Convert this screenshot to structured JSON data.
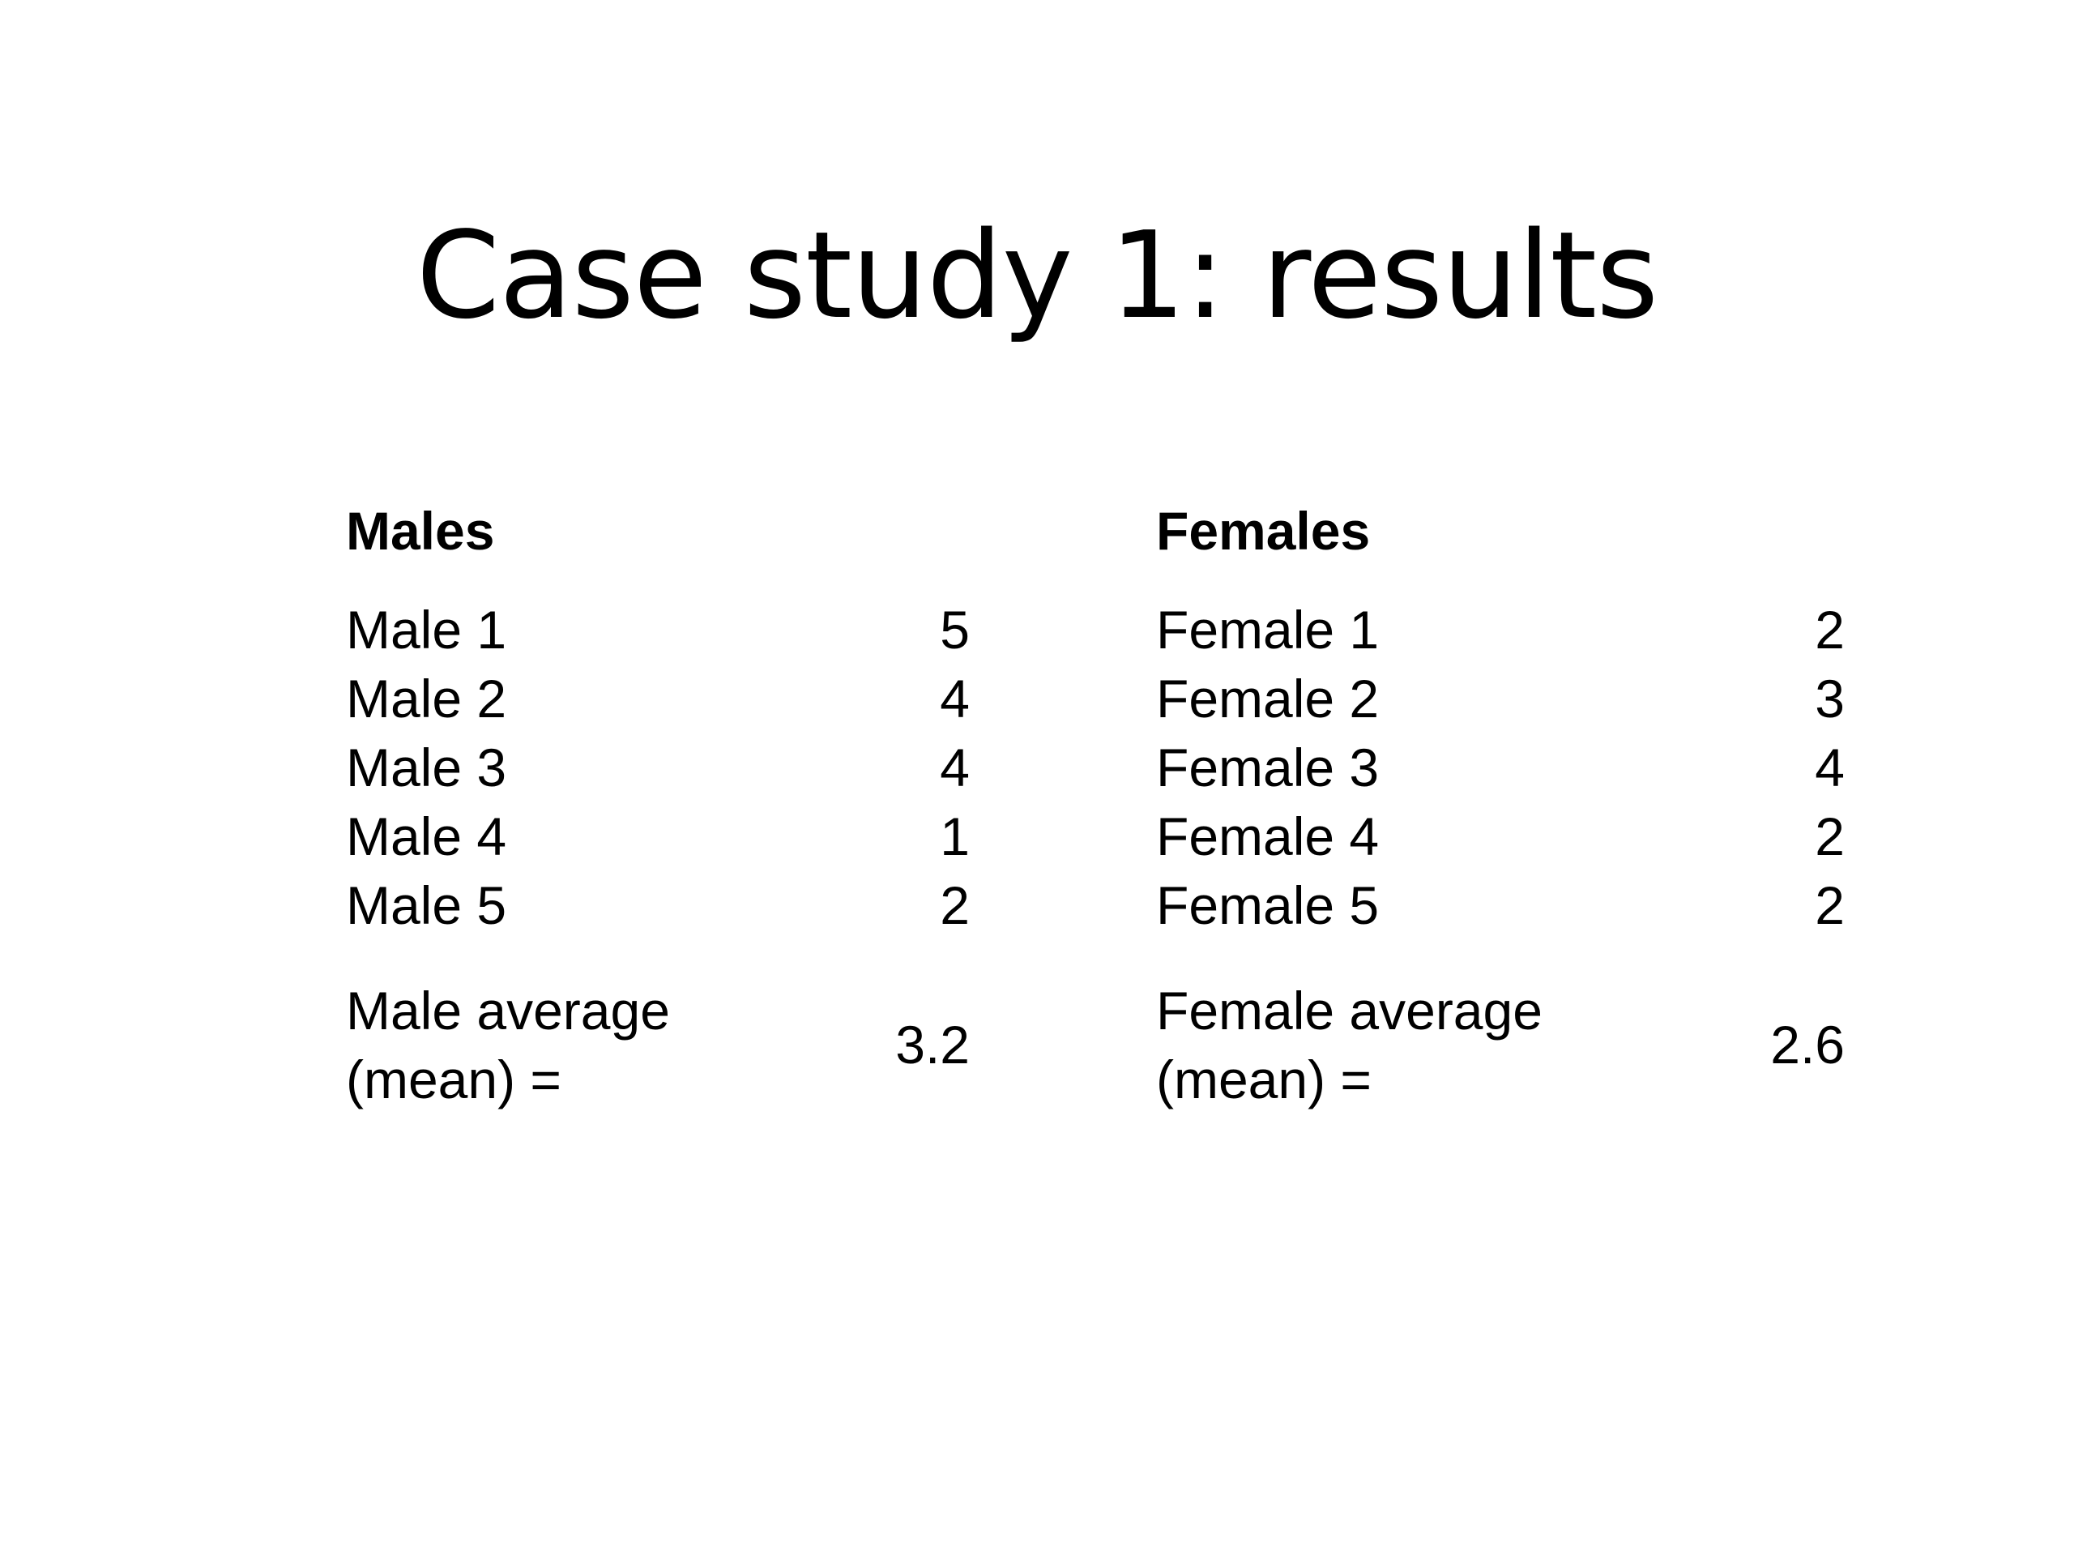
{
  "title": "Case study 1: results",
  "males": {
    "heading": "Males",
    "rows": [
      {
        "label": "Male 1",
        "value": "5"
      },
      {
        "label": "Male 2",
        "value": "4"
      },
      {
        "label": "Male 3",
        "value": "4"
      },
      {
        "label": "Male 4",
        "value": "1"
      },
      {
        "label": "Male 5",
        "value": "2"
      }
    ],
    "average": {
      "line1": "Male average",
      "line2": "(mean) =",
      "value": "3.2"
    }
  },
  "females": {
    "heading": "Females",
    "rows": [
      {
        "label": "Female 1",
        "value": "2"
      },
      {
        "label": "Female 2",
        "value": "3"
      },
      {
        "label": "Female 3",
        "value": "4"
      },
      {
        "label": "Female 4",
        "value": "2"
      },
      {
        "label": "Female 5",
        "value": "2"
      }
    ],
    "average": {
      "line1": "Female average",
      "line2": "(mean) =",
      "value": "2.6"
    }
  }
}
